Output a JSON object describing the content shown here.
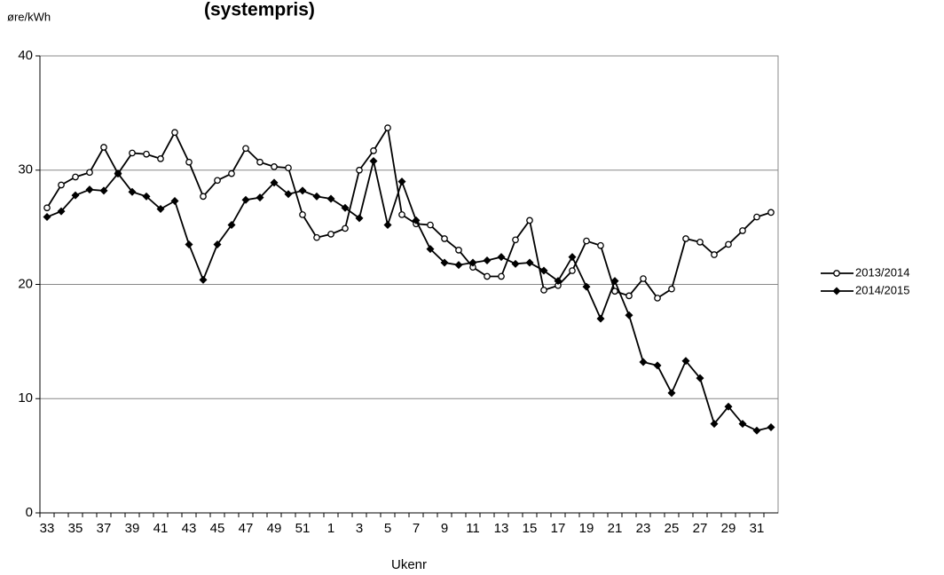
{
  "chart_data": {
    "type": "line",
    "title": "(systempris)",
    "y_label": "øre/kWh",
    "x_label": "Ukenr",
    "categories": [
      "33",
      null,
      "35",
      null,
      "37",
      null,
      "39",
      null,
      "41",
      null,
      "43",
      null,
      "45",
      null,
      "47",
      null,
      "49",
      null,
      "51",
      null,
      "1",
      null,
      "3",
      null,
      "5",
      null,
      "7",
      null,
      "9",
      null,
      "11",
      null,
      "13",
      null,
      "15",
      null,
      "17",
      null,
      "19",
      null,
      "21",
      null,
      "23",
      null,
      "25",
      null,
      "27",
      null,
      "29",
      null,
      "31",
      null
    ],
    "series": [
      {
        "name": "2013/2014",
        "color": "#000000",
        "marker": "circle",
        "values": [
          26.7,
          28.7,
          29.4,
          29.8,
          32.0,
          29.7,
          31.5,
          31.4,
          31.0,
          33.3,
          30.7,
          27.7,
          29.1,
          29.7,
          31.9,
          30.7,
          30.3,
          30.2,
          26.1,
          24.1,
          24.4,
          24.9,
          30.0,
          31.7,
          33.7,
          26.1,
          25.3,
          25.2,
          24.0,
          23.0,
          21.5,
          20.7,
          20.7,
          23.9,
          25.6,
          19.5,
          19.9,
          21.2,
          23.8,
          23.4,
          19.4,
          19.0,
          20.5,
          18.8,
          19.6,
          24.0,
          23.7,
          22.6,
          23.5,
          24.7,
          25.9,
          26.3
        ]
      },
      {
        "name": "2014/2015",
        "color": "#000000",
        "marker": "diamond",
        "values": [
          25.9,
          26.4,
          27.8,
          28.3,
          28.2,
          29.7,
          28.1,
          27.7,
          26.6,
          27.3,
          23.5,
          20.4,
          23.5,
          25.2,
          27.4,
          27.6,
          28.9,
          27.9,
          28.2,
          27.7,
          27.5,
          26.7,
          25.8,
          30.8,
          25.2,
          29.0,
          25.6,
          23.1,
          21.9,
          21.7,
          21.9,
          22.1,
          22.4,
          21.8,
          21.9,
          21.2,
          20.3,
          22.4,
          19.8,
          17.0,
          20.3,
          17.3,
          13.2,
          12.9,
          10.5,
          13.3,
          11.8,
          7.8,
          9.3,
          7.8,
          7.2,
          7.5
        ]
      }
    ],
    "ylim": [
      0,
      40
    ],
    "yticks": [
      0,
      10,
      20,
      30,
      40
    ],
    "grid": true,
    "legend": "right"
  }
}
